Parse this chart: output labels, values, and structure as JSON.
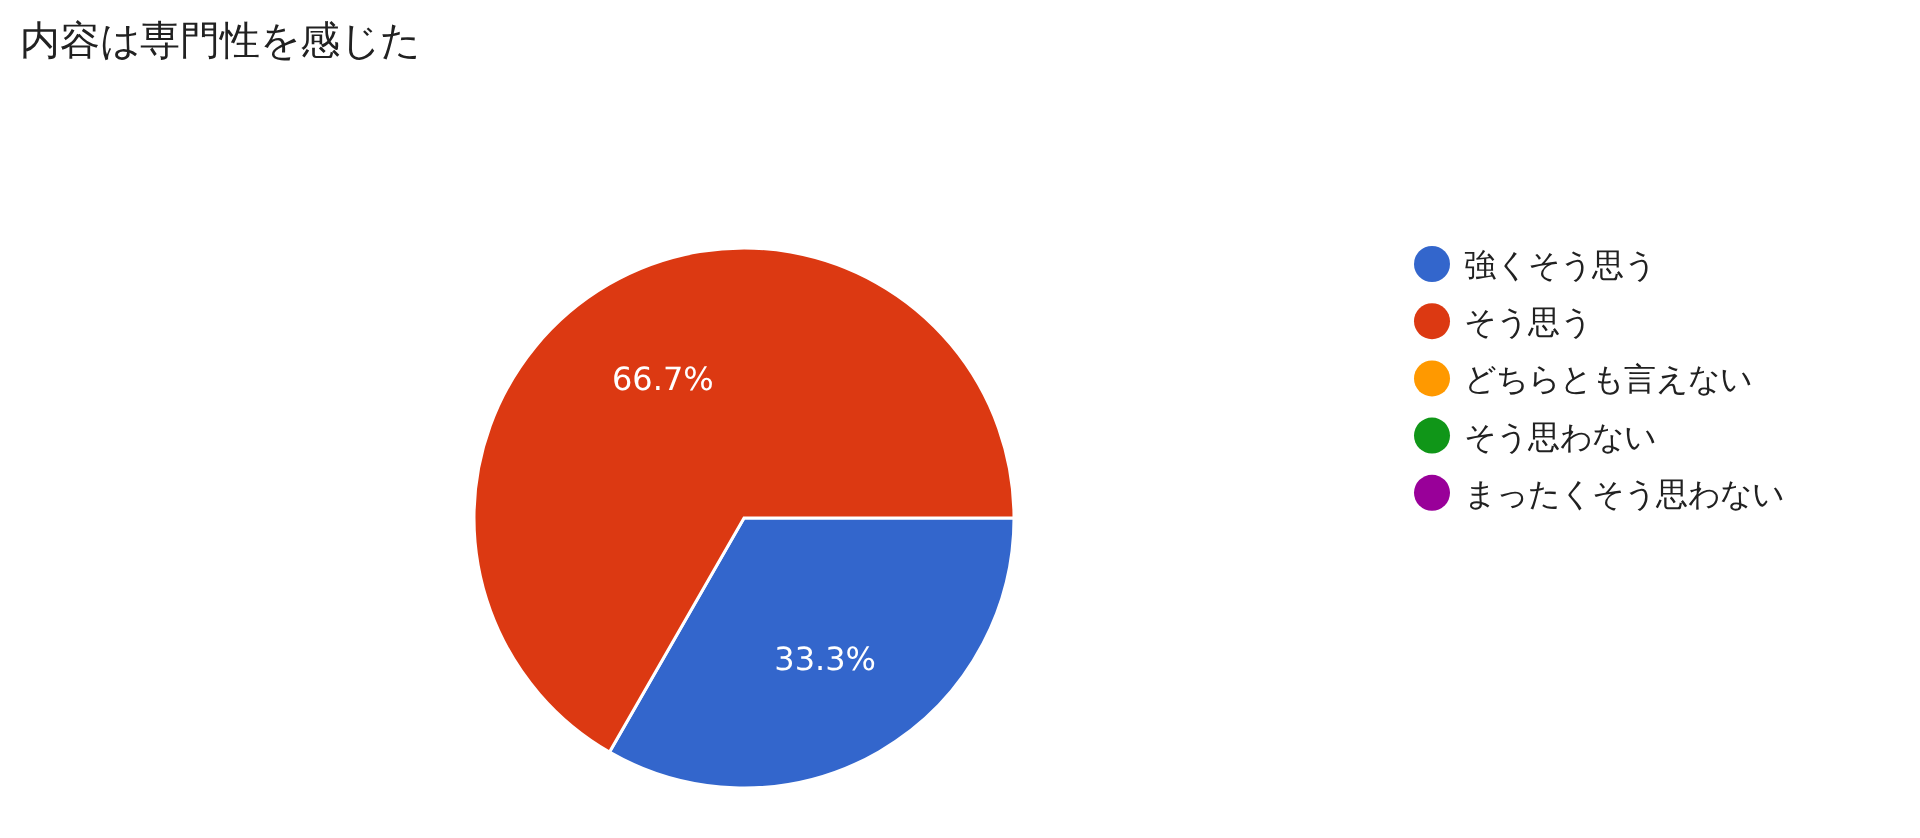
{
  "chart_data": {
    "type": "pie",
    "title": "内容は専門性を感じた",
    "categories": [
      "強くそう思う",
      "そう思う",
      "どちらとも言えない",
      "そう思わない",
      "まったくそう思わない"
    ],
    "values": [
      33.3,
      66.7,
      0,
      0,
      0
    ],
    "value_labels": [
      "33.3%",
      "66.7%",
      null,
      null,
      null
    ],
    "colors": [
      "#3366cc",
      "#dc3912",
      "#ff9900",
      "#109618",
      "#990099"
    ],
    "legend": "right"
  }
}
